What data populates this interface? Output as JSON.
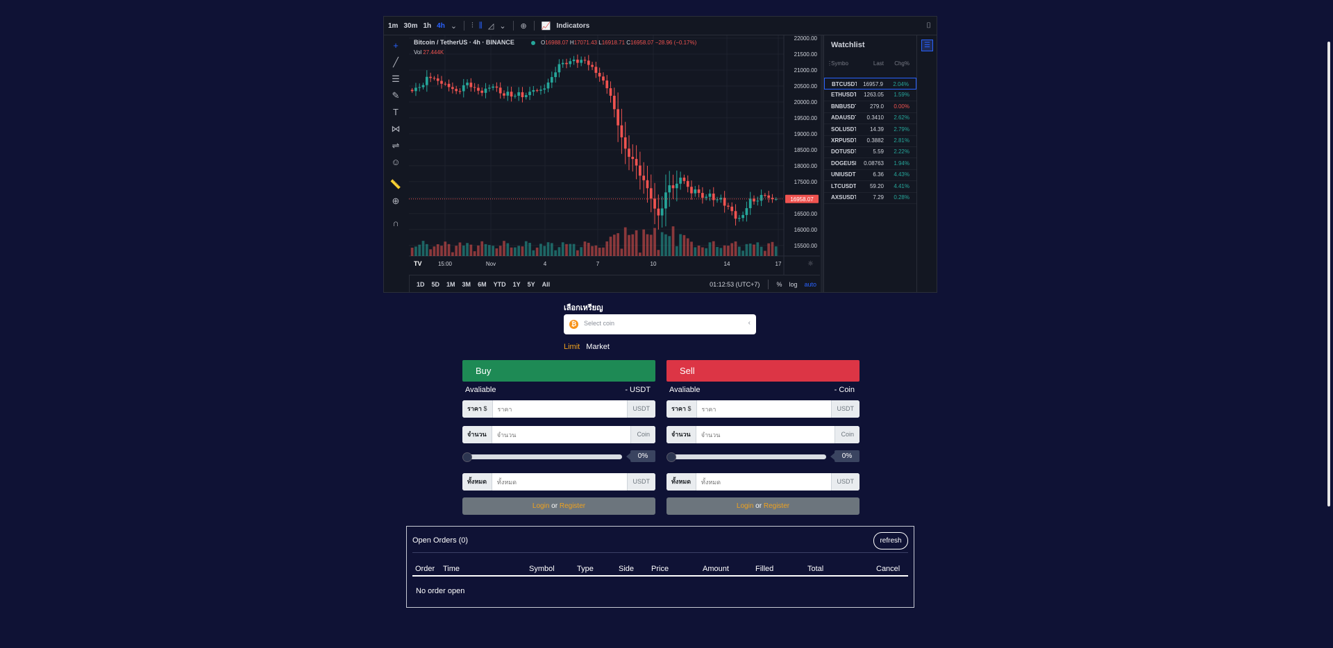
{
  "toolbar": {
    "timeframes": [
      "1m",
      "30m",
      "1h",
      "4h"
    ],
    "active_timeframe": "4h",
    "indicators_label": "Indicators"
  },
  "chart": {
    "symbol_title": "Bitcoin / TetherUS · 4h · BINANCE",
    "ohlc": {
      "o_label": "O",
      "o": "16988.07",
      "h_label": "H",
      "h": "17071.43",
      "l_label": "L",
      "l": "16918.71",
      "c_label": "C",
      "c": "16958.07",
      "change": "−28.96 (−0.17%)"
    },
    "vol_label": "Vol",
    "vol_value": "27.444K",
    "price_tag": "16958.07",
    "logo": "TV",
    "colors": {
      "up": "#26a69a",
      "down": "#ef5350",
      "bg": "#131722",
      "grid": "#1e222d"
    }
  },
  "chart_data": {
    "type": "candlestick",
    "title": "Bitcoin / TetherUS · 4h · BINANCE",
    "y_ticks": [
      "22000.00",
      "21500.00",
      "21000.00",
      "20500.00",
      "20000.00",
      "19500.00",
      "19000.00",
      "18500.00",
      "18000.00",
      "17500.00",
      "17000.00",
      "16500.00",
      "16000.00",
      "15500.00"
    ],
    "ylim": [
      15300,
      22000
    ],
    "x_ticks": [
      "15:00",
      "Nov",
      "4",
      "7",
      "10",
      "14",
      "17"
    ],
    "last_price": 16958.07,
    "close_path": [
      20300,
      20500,
      20350,
      20800,
      20650,
      20700,
      20550,
      20600,
      20450,
      20350,
      20500,
      20600,
      20400,
      20300,
      20250,
      20400,
      20500,
      20400,
      20250,
      20350,
      20200,
      20300,
      20150,
      20200,
      20350,
      20250,
      20400,
      20600,
      20900,
      21200,
      21300,
      21250,
      21350,
      21200,
      21300,
      21100,
      20950,
      20800,
      20600,
      20400,
      19800,
      19200,
      18600,
      18300,
      18100,
      17700,
      17400,
      17100,
      16600,
      16400,
      17100,
      17500,
      17300,
      17700,
      17500,
      17100,
      17200,
      17000,
      16950,
      17100,
      16900,
      17050,
      16800,
      16700,
      16400,
      16300,
      16600,
      16900,
      16800,
      17000,
      17100,
      16950,
      16958
    ]
  },
  "bottom_bar": {
    "ranges": [
      "1D",
      "5D",
      "1M",
      "3M",
      "6M",
      "YTD",
      "1Y",
      "5Y",
      "All"
    ],
    "clock": "01:12:53 (UTC+7)",
    "pct": "%",
    "log": "log",
    "auto": "auto"
  },
  "watchlist": {
    "title": "Watchlist",
    "columns": [
      "Symbo",
      "Last",
      "Chg%"
    ],
    "rows": [
      {
        "symbol": "BTCUSDT",
        "last": "16957.9",
        "chg": "2.04%",
        "dir": "up",
        "selected": true
      },
      {
        "symbol": "ETHUSDT",
        "last": "1263.05",
        "chg": "1.59%",
        "dir": "up"
      },
      {
        "symbol": "BNBUSDT",
        "last": "279.0",
        "chg": "0.00%",
        "dir": "down"
      },
      {
        "symbol": "ADAUSDT",
        "last": "0.3410",
        "chg": "2.62%",
        "dir": "up"
      },
      {
        "symbol": "SOLUSDT",
        "last": "14.39",
        "chg": "2.79%",
        "dir": "up"
      },
      {
        "symbol": "XRPUSDT",
        "last": "0.3882",
        "chg": "2.81%",
        "dir": "up"
      },
      {
        "symbol": "DOTUSDT",
        "last": "5.59",
        "chg": "2.22%",
        "dir": "up"
      },
      {
        "symbol": "DOGEUSDT",
        "last": "0.08763",
        "chg": "1.94%",
        "dir": "up"
      },
      {
        "symbol": "UNIUSDT",
        "last": "6.36",
        "chg": "4.43%",
        "dir": "up"
      },
      {
        "symbol": "LTCUSDT",
        "last": "59.20",
        "chg": "4.41%",
        "dir": "up"
      },
      {
        "symbol": "AXSUSDT",
        "last": "7.29",
        "chg": "0.28%",
        "dir": "up"
      }
    ]
  },
  "coin_select": {
    "label": "เลือกเหรียญ",
    "placeholder": "Select coin",
    "icon": "₿"
  },
  "order_type": {
    "limit": "Limit",
    "market": "Market"
  },
  "buy": {
    "title": "Buy",
    "available_label": "Avaliable",
    "available_value": "- USDT",
    "price_prefix": "ราคา",
    "price_currency": "$",
    "price_placeholder": "ราคา",
    "price_suffix": "USDT",
    "amount_prefix": "จำนวน",
    "amount_placeholder": "จำนวน",
    "amount_suffix": "Coin",
    "percent": "0%",
    "percent_value": 0,
    "total_prefix": "ทั้งหมด",
    "total_placeholder": "ทั้งหมด",
    "total_suffix": "USDT"
  },
  "sell": {
    "title": "Sell",
    "available_label": "Avaliable",
    "available_value": "- Coin",
    "price_prefix": "ราคา",
    "price_currency": "$",
    "price_placeholder": "ราคา",
    "price_suffix": "USDT",
    "amount_prefix": "จำนวน",
    "amount_placeholder": "จำนวน",
    "amount_suffix": "Coin",
    "percent": "0%",
    "percent_value": 0,
    "total_prefix": "ทั้งหมด",
    "total_placeholder": "ทั้งหมด",
    "total_suffix": "USDT"
  },
  "auth": {
    "login": "Login",
    "or": "or",
    "register": "Register"
  },
  "orders": {
    "title": "Open Orders (0)",
    "refresh": "refresh",
    "columns": [
      "Order",
      "Time",
      "Symbol",
      "Type",
      "Side",
      "Price",
      "Amount",
      "Filled",
      "Total",
      "Cancel"
    ],
    "empty": "No order open"
  }
}
